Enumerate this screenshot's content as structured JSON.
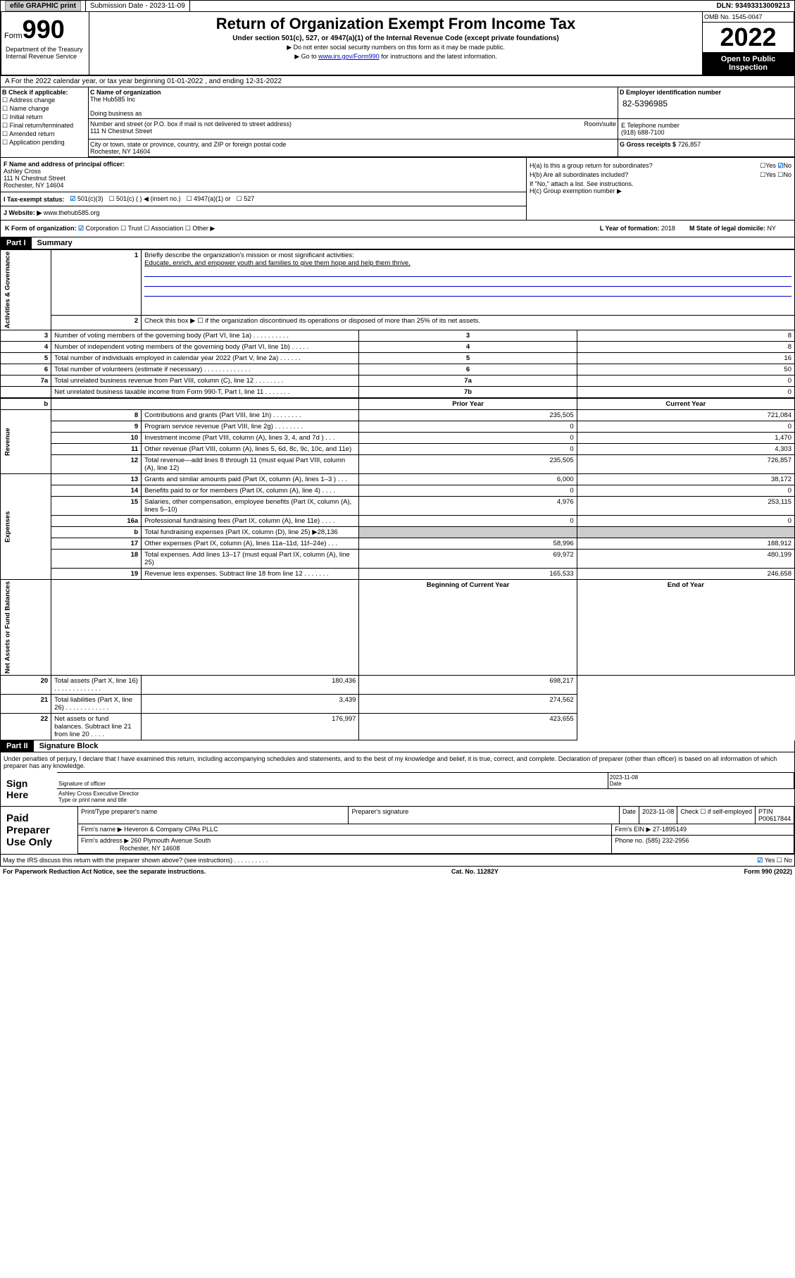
{
  "topbar": {
    "efile": "efile GRAPHIC print",
    "sub_label": "Submission Date - 2023-11-09",
    "dln": "DLN: 93493313009213"
  },
  "header": {
    "form_label": "Form",
    "form_num": "990",
    "dept": "Department of the Treasury Internal Revenue Service",
    "title": "Return of Organization Exempt From Income Tax",
    "sub": "Under section 501(c), 527, or 4947(a)(1) of the Internal Revenue Code (except private foundations)",
    "note1": "▶ Do not enter social security numbers on this form as it may be made public.",
    "note2_pre": "▶ Go to ",
    "note2_link": "www.irs.gov/Form990",
    "note2_post": " for instructions and the latest information.",
    "omb": "OMB No. 1545-0047",
    "year": "2022",
    "open": "Open to Public Inspection"
  },
  "row_a": "A For the 2022 calendar year, or tax year beginning 01-01-2022    , and ending 12-31-2022",
  "b": {
    "label": "B Check if applicable:",
    "items": [
      "Address change",
      "Name change",
      "Initial return",
      "Final return/terminated",
      "Amended return",
      "Application pending"
    ]
  },
  "c": {
    "name_label": "C Name of organization",
    "name": "The Hub585 Inc",
    "dba_label": "Doing business as",
    "addr_label": "Number and street (or P.O. box if mail is not delivered to street address)",
    "room_label": "Room/suite",
    "addr": "111 N Chestnut Street",
    "city_label": "City or town, state or province, country, and ZIP or foreign postal code",
    "city": "Rochester, NY  14604"
  },
  "d": {
    "label": "D Employer identification number",
    "ein": "82-5396985"
  },
  "e": {
    "label": "E Telephone number",
    "phone": "(918) 688-7100"
  },
  "g": {
    "label": "G Gross receipts $",
    "val": "726,857"
  },
  "f": {
    "label": "F Name and address of principal officer:",
    "name": "Ashley Cross",
    "addr": "111 N Chestnut Street",
    "city": "Rochester, NY  14604"
  },
  "h": {
    "a_label": "H(a)  Is this a group return for subordinates?",
    "b_label": "H(b)  Are all subordinates included?",
    "note": "If \"No,\" attach a list. See instructions.",
    "c_label": "H(c)  Group exemption number ▶",
    "yes": "Yes",
    "no": "No"
  },
  "i": {
    "label": "I   Tax-exempt status:",
    "opts": [
      "501(c)(3)",
      "501(c) (  ) ◀ (insert no.)",
      "4947(a)(1) or",
      "527"
    ]
  },
  "j": {
    "label": "J   Website: ▶",
    "val": "www.thehub585.org"
  },
  "k": {
    "label": "K Form of organization:",
    "opts": [
      "Corporation",
      "Trust",
      "Association",
      "Other ▶"
    ]
  },
  "l": {
    "label": "L Year of formation:",
    "val": "2018"
  },
  "m": {
    "label": "M State of legal domicile:",
    "val": "NY"
  },
  "part1": {
    "hdr": "Part I",
    "title": "Summary"
  },
  "summary": {
    "l1_label": "Briefly describe the organization's mission or most significant activities:",
    "l1_text": "Educate, enrich, and empower youth and families to give them hope and help them thrive.",
    "l2": "Check this box ▶ ☐  if the organization discontinued its operations or disposed of more than 25% of its net assets.",
    "rows_gov": [
      {
        "n": "3",
        "t": "Number of voting members of the governing body (Part VI, line 1a)  .   .   .   .   .   .   .   .   .   .",
        "box": "3",
        "v": "8"
      },
      {
        "n": "4",
        "t": "Number of independent voting members of the governing body (Part VI, line 1b)   .   .   .   .   .",
        "box": "4",
        "v": "8"
      },
      {
        "n": "5",
        "t": "Total number of individuals employed in calendar year 2022 (Part V, line 2a)  .   .   .   .   .   .",
        "box": "5",
        "v": "16"
      },
      {
        "n": "6",
        "t": "Total number of volunteers (estimate if necessary)  .   .   .   .   .   .   .   .   .   .   .   .   .",
        "box": "6",
        "v": "50"
      },
      {
        "n": "7a",
        "t": "Total unrelated business revenue from Part VIII, column (C), line 12  .   .   .   .   .   .   .   .",
        "box": "7a",
        "v": "0"
      },
      {
        "n": "",
        "t": "Net unrelated business taxable income from Form 990-T, Part I, line 11   .   .   .   .   .   .   .",
        "box": "7b",
        "v": "0"
      }
    ],
    "col_hdr_prior": "Prior Year",
    "col_hdr_curr": "Current Year",
    "rows_rev": [
      {
        "n": "8",
        "t": "Contributions and grants (Part VIII, line 1h)   .   .   .   .   .   .   .   .",
        "p": "235,505",
        "c": "721,084"
      },
      {
        "n": "9",
        "t": "Program service revenue (Part VIII, line 2g)  .   .   .   .   .   .   .   .",
        "p": "0",
        "c": "0"
      },
      {
        "n": "10",
        "t": "Investment income (Part VIII, column (A), lines 3, 4, and 7d )   .   .   .",
        "p": "0",
        "c": "1,470"
      },
      {
        "n": "11",
        "t": "Other revenue (Part VIII, column (A), lines 5, 6d, 8c, 9c, 10c, and 11e)",
        "p": "0",
        "c": "4,303"
      },
      {
        "n": "12",
        "t": "Total revenue—add lines 8 through 11 (must equal Part VIII, column (A), line 12)",
        "p": "235,505",
        "c": "726,857"
      }
    ],
    "rows_exp": [
      {
        "n": "13",
        "t": "Grants and similar amounts paid (Part IX, column (A), lines 1–3 )   .   .   .",
        "p": "6,000",
        "c": "38,172"
      },
      {
        "n": "14",
        "t": "Benefits paid to or for members (Part IX, column (A), line 4)   .   .   .   .",
        "p": "0",
        "c": "0"
      },
      {
        "n": "15",
        "t": "Salaries, other compensation, employee benefits (Part IX, column (A), lines 5–10)",
        "p": "4,976",
        "c": "253,115"
      },
      {
        "n": "16a",
        "t": "Professional fundraising fees (Part IX, column (A), line 11e)   .   .   .   .",
        "p": "0",
        "c": "0"
      },
      {
        "n": "b",
        "t": "Total fundraising expenses (Part IX, column (D), line 25) ▶28,136",
        "p": "",
        "c": ""
      },
      {
        "n": "17",
        "t": "Other expenses (Part IX, column (A), lines 11a–11d, 11f–24e)   .   .   .",
        "p": "58,996",
        "c": "188,912"
      },
      {
        "n": "18",
        "t": "Total expenses. Add lines 13–17 (must equal Part IX, column (A), line 25)",
        "p": "69,972",
        "c": "480,199"
      },
      {
        "n": "19",
        "t": "Revenue less expenses. Subtract line 18 from line 12  .   .   .   .   .   .   .",
        "p": "165,533",
        "c": "246,658"
      }
    ],
    "col_hdr_beg": "Beginning of Current Year",
    "col_hdr_end": "End of Year",
    "rows_net": [
      {
        "n": "20",
        "t": "Total assets (Part X, line 16)  .   .   .   .   .   .   .   .   .   .   .   .   .",
        "p": "180,436",
        "c": "698,217"
      },
      {
        "n": "21",
        "t": "Total liabilities (Part X, line 26)  .   .   .   .   .   .   .   .   .   .   .   .",
        "p": "3,439",
        "c": "274,562"
      },
      {
        "n": "22",
        "t": "Net assets or fund balances. Subtract line 21 from line 20   .   .   .   .",
        "p": "176,997",
        "c": "423,655"
      }
    ],
    "vtabs": {
      "gov": "Activities & Governance",
      "rev": "Revenue",
      "exp": "Expenses",
      "net": "Net Assets or Fund Balances"
    }
  },
  "part2": {
    "hdr": "Part II",
    "title": "Signature Block"
  },
  "sig": {
    "penalty": "Under penalties of perjury, I declare that I have examined this return, including accompanying schedules and statements, and to the best of my knowledge and belief, it is true, correct, and complete. Declaration of preparer (other than officer) is based on all information of which preparer has any knowledge.",
    "sign_here": "Sign Here",
    "sig_officer": "Signature of officer",
    "sig_date": "2023-11-08",
    "date_label": "Date",
    "officer_name": "Ashley Cross  Executive Director",
    "type_name": "Type or print name and title"
  },
  "prep": {
    "label": "Paid Preparer Use Only",
    "hdr": [
      "Print/Type preparer's name",
      "Preparer's signature",
      "Date",
      "",
      "PTIN"
    ],
    "date": "2023-11-08",
    "check": "Check ☐ if self-employed",
    "ptin": "P00617844",
    "firm_label": "Firm's name    ▶",
    "firm": "Heveron & Company CPAs PLLC",
    "ein_label": "Firm's EIN ▶",
    "ein": "27-1895149",
    "addr_label": "Firm's address ▶",
    "addr1": "260 Plymouth Avenue South",
    "addr2": "Rochester, NY  14608",
    "phone_label": "Phone no.",
    "phone": "(585) 232-2956"
  },
  "discuss": "May the IRS discuss this return with the preparer shown above? (see instructions)   .   .   .   .   .   .   .   .   .   .",
  "footer": {
    "left": "For Paperwork Reduction Act Notice, see the separate instructions.",
    "mid": "Cat. No. 11282Y",
    "right": "Form 990 (2022)"
  }
}
